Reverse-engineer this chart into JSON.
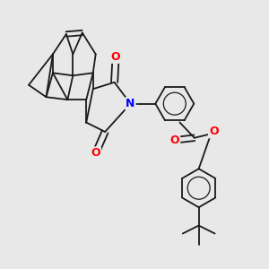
{
  "background_color": "#e8e8e8",
  "bond_color": "#1a1a1a",
  "atom_colors": {
    "N": "#0000ff",
    "O": "#ff0000"
  },
  "figsize": [
    3.0,
    3.0
  ],
  "dpi": 100,
  "lw": 1.3
}
